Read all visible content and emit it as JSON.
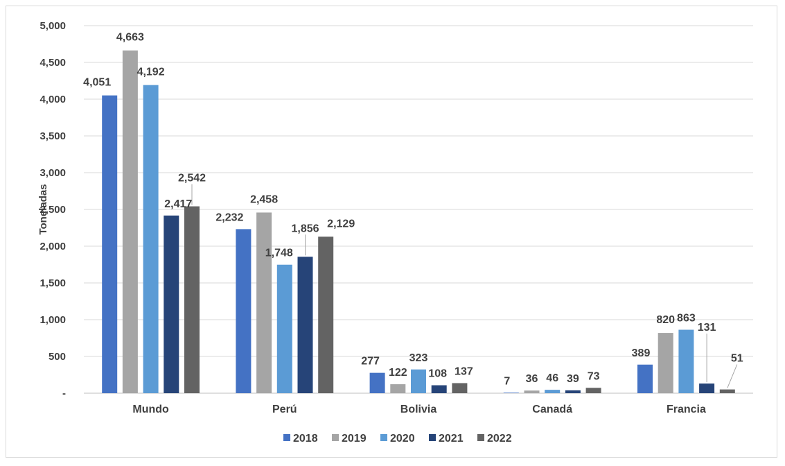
{
  "chart_data": {
    "type": "bar",
    "title": "",
    "xlabel": "",
    "ylabel": "Toneladas",
    "ylim": [
      0,
      5000
    ],
    "ytick_values": [
      0,
      500,
      1000,
      1500,
      2000,
      2500,
      3000,
      3500,
      4000,
      4500,
      5000
    ],
    "ytick_labels": [
      "-",
      "500",
      "1,000",
      "1,500",
      "2,000",
      "2,500",
      "3,000",
      "3,500",
      "4,000",
      "4,500",
      "5,000"
    ],
    "grid": true,
    "legend_position": "bottom",
    "categories": [
      "Mundo",
      "Perú",
      "Bolivia",
      "Canadá",
      "Francia"
    ],
    "series": [
      {
        "name": "2018",
        "color": "#4472c4",
        "values": [
          4051,
          2232,
          277,
          7,
          389
        ],
        "labels": [
          "4,051",
          "2,232",
          "277",
          "7",
          "389"
        ]
      },
      {
        "name": "2019",
        "color": "#a5a5a5",
        "values": [
          4663,
          2458,
          122,
          36,
          820
        ],
        "labels": [
          "4,663",
          "2,458",
          "122",
          "36",
          "820"
        ]
      },
      {
        "name": "2020",
        "color": "#5b9bd5",
        "values": [
          4192,
          1748,
          323,
          46,
          863
        ],
        "labels": [
          "4,192",
          "1,748",
          "323",
          "46",
          "863"
        ]
      },
      {
        "name": "2021",
        "color": "#264478",
        "values": [
          2417,
          1856,
          108,
          39,
          131
        ],
        "labels": [
          "2,417",
          "1,856",
          "108",
          "39",
          "131"
        ]
      },
      {
        "name": "2022",
        "color": "#636363",
        "values": [
          2542,
          2129,
          137,
          73,
          51
        ],
        "labels": [
          "2,542",
          "2,129",
          "137",
          "73",
          "51"
        ]
      }
    ]
  }
}
